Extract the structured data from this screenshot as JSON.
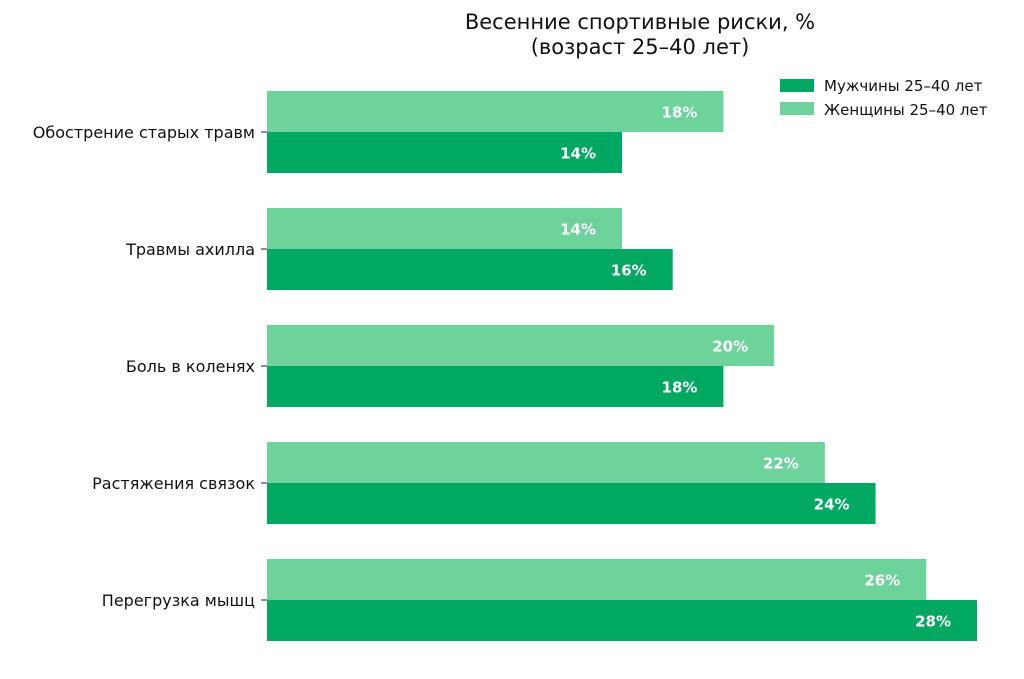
{
  "chart_data": {
    "type": "bar",
    "orientation": "horizontal",
    "title": "Весенние спортивные риски, %",
    "subtitle": "(возраст 25–40 лет)",
    "xlabel": "",
    "ylabel": "",
    "xlim": [
      0,
      28
    ],
    "grid": false,
    "legend_position": "top-right",
    "categories": [
      "Обострение старых травм",
      "Травмы ахилла",
      "Боль в коленях",
      "Растяжения связок",
      "Перегрузка мышц"
    ],
    "series": [
      {
        "name": "Мужчины 25–40 лет",
        "color": "#00a862",
        "values": [
          14,
          16,
          18,
          24,
          28
        ],
        "labels": [
          "14%",
          "16%",
          "18%",
          "24%",
          "28%"
        ]
      },
      {
        "name": "Женщины 25–40 лет",
        "color": "#6dd39b",
        "values": [
          18,
          14,
          20,
          22,
          26
        ],
        "labels": [
          "18%",
          "14%",
          "20%",
          "22%",
          "26%"
        ]
      }
    ]
  }
}
